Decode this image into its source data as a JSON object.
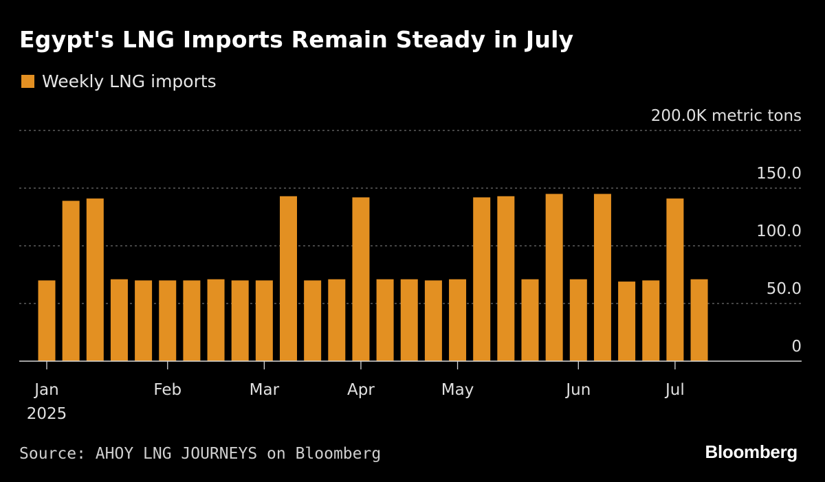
{
  "header": {
    "title": "Egypt's LNG Imports Remain Steady in July"
  },
  "legend": {
    "label": "Weekly LNG imports",
    "color": "#e39022"
  },
  "footer": {
    "source": "Source: AHOY LNG JOURNEYS on Bloomberg",
    "brand": "Bloomberg"
  },
  "chart_data": {
    "type": "bar",
    "ylabel": "",
    "y_unit": "metric tons",
    "ylim": [
      0,
      200
    ],
    "y_ticks": [
      {
        "value": 0,
        "label": "0"
      },
      {
        "value": 50,
        "label": "50.0"
      },
      {
        "value": 100,
        "label": "100.0"
      },
      {
        "value": 150,
        "label": "150.0"
      },
      {
        "value": 200,
        "label": "200.0K metric tons"
      }
    ],
    "grid": true,
    "grid_style": "dotted",
    "legend_position": "top-left",
    "y_axis_position": "right",
    "bar_color": "#e39022",
    "x_ticks": [
      {
        "label": "Jan",
        "sublabel": "2025",
        "index": 0
      },
      {
        "label": "Feb",
        "index": 5
      },
      {
        "label": "Mar",
        "index": 9
      },
      {
        "label": "Apr",
        "index": 13
      },
      {
        "label": "May",
        "index": 17
      },
      {
        "label": "Jun",
        "index": 22
      },
      {
        "label": "Jul",
        "index": 26
      }
    ],
    "series": [
      {
        "name": "Weekly LNG imports",
        "values": [
          70,
          139,
          141,
          71,
          70,
          70,
          70,
          71,
          70,
          70,
          143,
          70,
          71,
          142,
          71,
          71,
          70,
          71,
          142,
          143,
          71,
          145,
          71,
          145,
          69,
          70,
          141,
          71
        ]
      }
    ]
  }
}
